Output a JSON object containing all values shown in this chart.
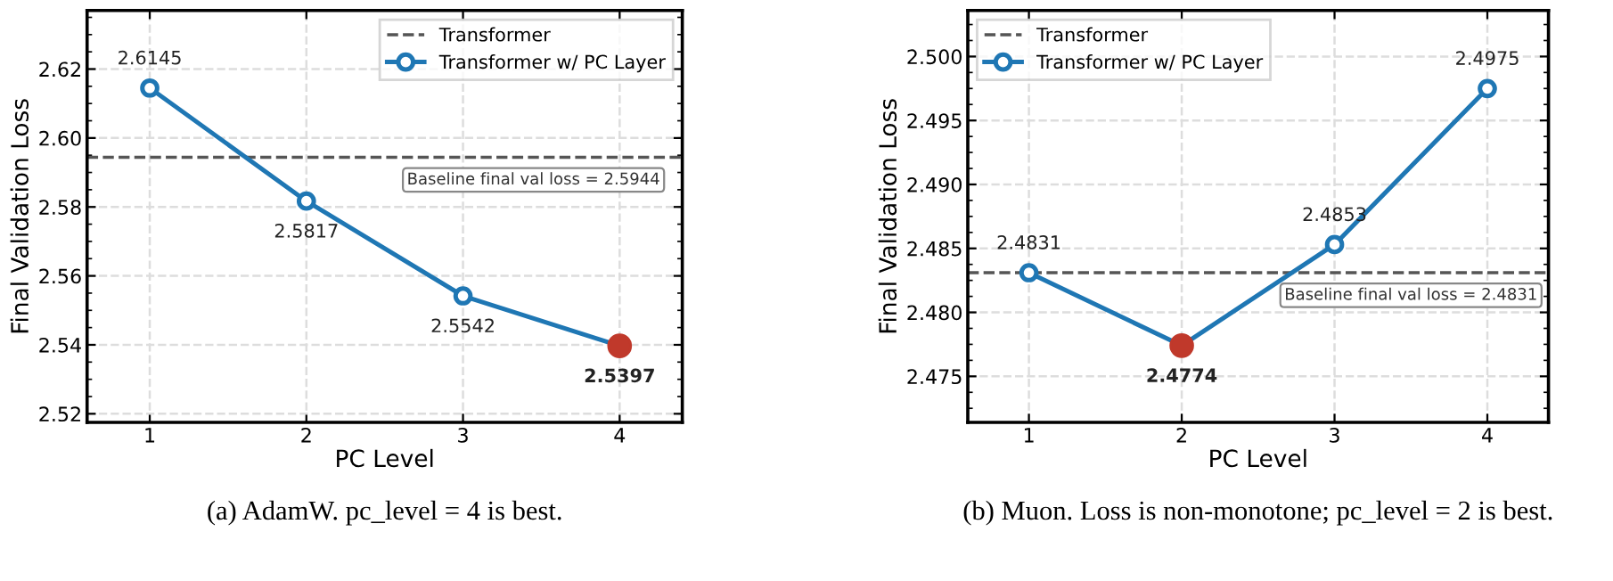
{
  "chart_data": [
    {
      "type": "line",
      "xlabel": "PC Level",
      "ylabel": "Final Validation Loss",
      "xlim": [
        0.6,
        4.4
      ],
      "xticks": [
        1,
        2,
        3,
        4
      ],
      "ylim": [
        2.5175,
        2.637
      ],
      "yticks": [
        {
          "value": 2.52,
          "label": "2.52"
        },
        {
          "value": 2.54,
          "label": "2.54"
        },
        {
          "value": 2.56,
          "label": "2.56"
        },
        {
          "value": 2.58,
          "label": "2.58"
        },
        {
          "value": 2.6,
          "label": "2.60"
        },
        {
          "value": 2.62,
          "label": "2.62"
        }
      ],
      "grid": true,
      "legend": "top right",
      "series": [
        {
          "name": "Transformer",
          "line_style": "dashed",
          "marker": "none",
          "color": "#555555",
          "x": [
            0.6,
            4.4
          ],
          "values": [
            2.5944,
            2.5944
          ]
        },
        {
          "name": "Transformer w/ PC Layer",
          "marker": "circle",
          "color": "#1f77b4",
          "x": [
            1,
            2,
            3,
            4
          ],
          "values": [
            2.6145,
            2.5817,
            2.5542,
            2.5397
          ],
          "value_labels": [
            "2.6145",
            "2.5817",
            "2.5542",
            null
          ]
        },
        {
          "type": "scatter",
          "color": "#c0392b",
          "x": [
            4
          ],
          "values": [
            2.5397
          ],
          "value_labels": [
            "2.5397"
          ]
        }
      ],
      "annotations": [
        {
          "text": "Baseline final val loss = 2.5944",
          "x": 3.45,
          "y": 2.5944
        },
        "(a) AdamW. pc_level = 4 is best."
      ]
    },
    {
      "type": "line",
      "xlabel": "PC Level",
      "ylabel": "Final Validation Loss",
      "xlim": [
        0.6,
        4.4
      ],
      "xticks": [
        1,
        2,
        3,
        4
      ],
      "ylim": [
        2.4714,
        2.5036
      ],
      "yticks": [
        {
          "value": 2.475,
          "label": "2.475"
        },
        {
          "value": 2.48,
          "label": "2.480"
        },
        {
          "value": 2.485,
          "label": "2.485"
        },
        {
          "value": 2.49,
          "label": "2.490"
        },
        {
          "value": 2.495,
          "label": "2.495"
        },
        {
          "value": 2.5,
          "label": "2.500"
        }
      ],
      "grid": true,
      "legend": "top left",
      "series": [
        {
          "name": "Transformer",
          "line_style": "dashed",
          "marker": "none",
          "color": "#555555",
          "x": [
            0.6,
            4.4
          ],
          "values": [
            2.4831,
            2.4831
          ]
        },
        {
          "name": "Transformer w/ PC Layer",
          "marker": "circle",
          "color": "#1f77b4",
          "x": [
            1,
            2,
            3,
            4
          ],
          "values": [
            2.4831,
            2.4774,
            2.4853,
            2.4975
          ],
          "value_labels": [
            "2.4831",
            null,
            "2.4853",
            "2.4975"
          ]
        },
        {
          "type": "scatter",
          "color": "#c0392b",
          "x": [
            2
          ],
          "values": [
            2.4774
          ],
          "value_labels": [
            "2.4774"
          ]
        }
      ],
      "annotations": [
        {
          "text": "Baseline final val loss = 2.4831",
          "x": 3.5,
          "y": 2.4831
        },
        "(b) Muon. Loss is non-monotone; pc_level = 2 is best."
      ]
    }
  ]
}
